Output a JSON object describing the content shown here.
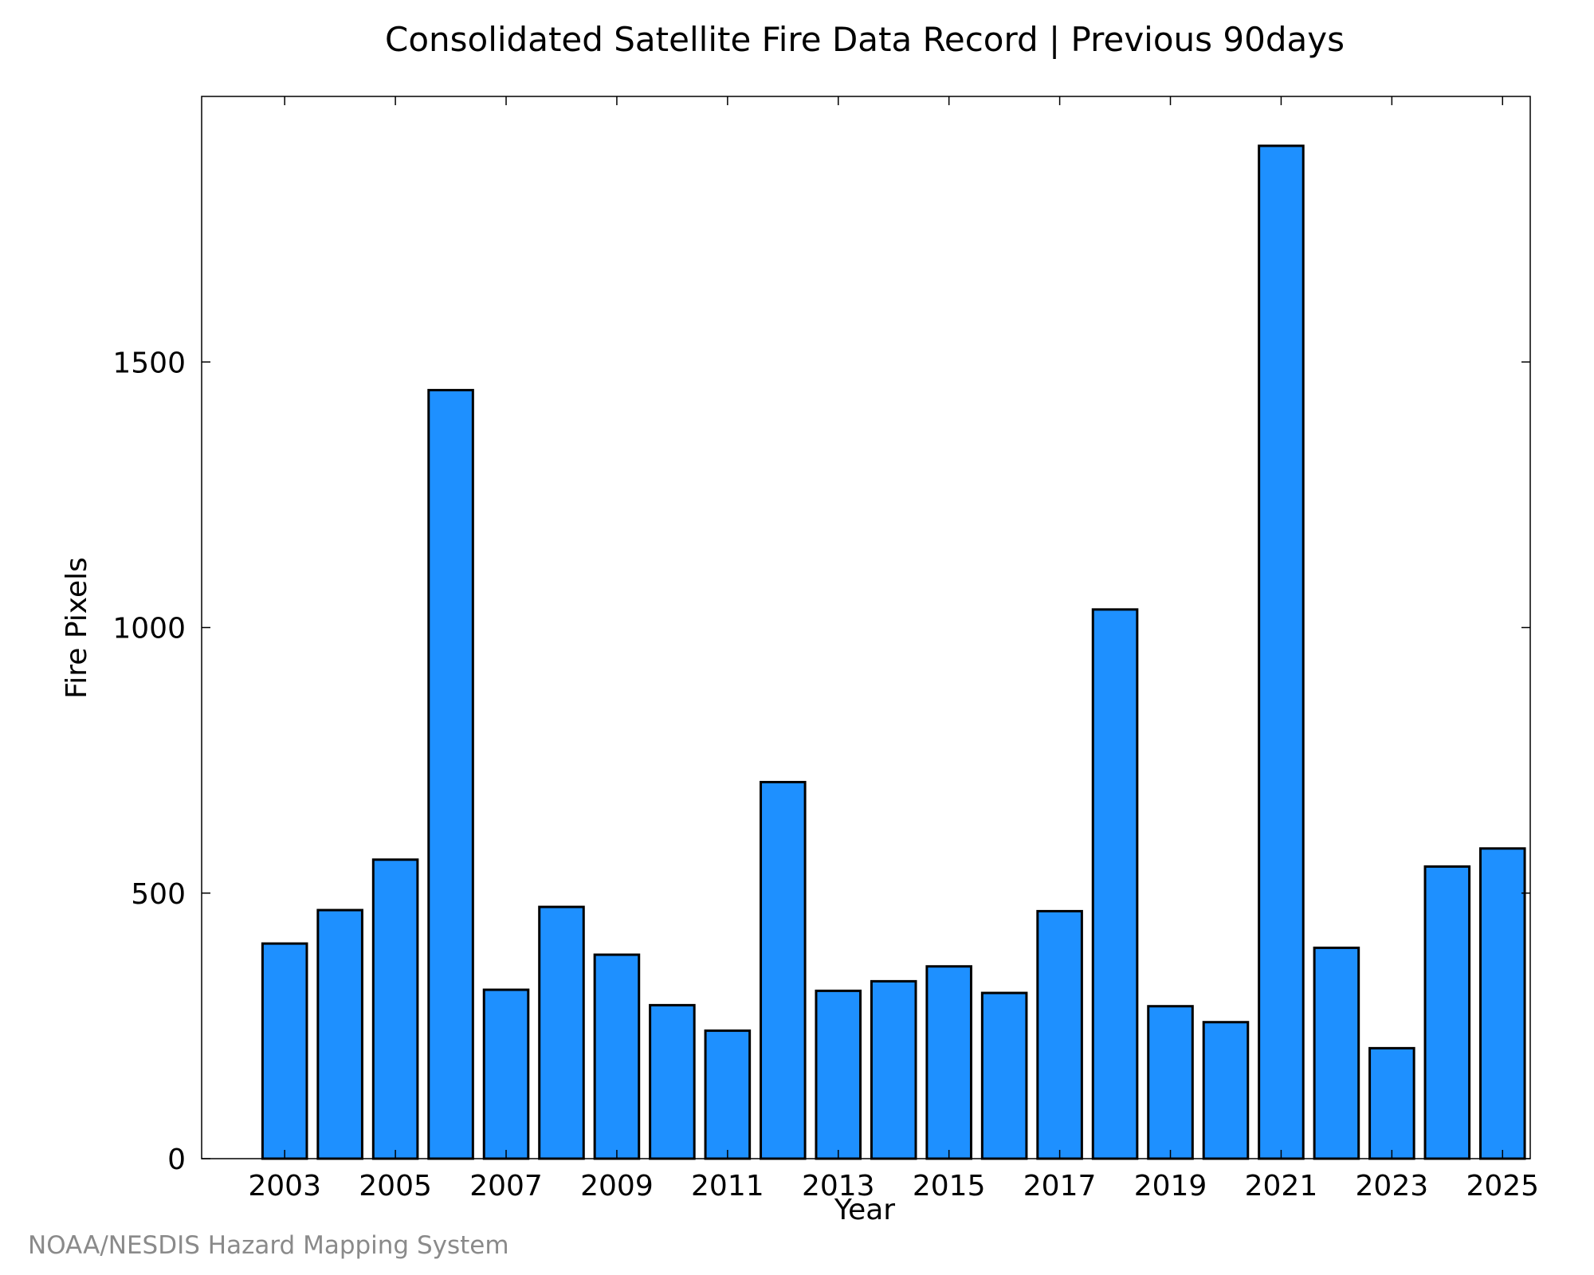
{
  "chart_data": {
    "type": "bar",
    "title": "Consolidated Satellite Fire Data Record | Previous 90days",
    "xlabel": "Year",
    "ylabel": "Fire Pixels",
    "credit": "NOAA/NESDIS Hazard Mapping System",
    "categories": [
      2003,
      2004,
      2005,
      2006,
      2007,
      2008,
      2009,
      2010,
      2011,
      2012,
      2013,
      2014,
      2015,
      2016,
      2017,
      2018,
      2019,
      2020,
      2021,
      2022,
      2023,
      2024,
      2025
    ],
    "values": [
      405,
      468,
      563,
      1447,
      318,
      474,
      384,
      289,
      241,
      709,
      316,
      334,
      362,
      312,
      466,
      1034,
      287,
      257,
      1907,
      397,
      208,
      550,
      584
    ],
    "x_tick_labels": [
      "2003",
      "2005",
      "2007",
      "2009",
      "2011",
      "2013",
      "2015",
      "2017",
      "2019",
      "2021",
      "2023",
      "2025"
    ],
    "y_ticks": [
      0,
      500,
      1000,
      1500
    ],
    "y_tick_labels": [
      "0",
      "500",
      "1000",
      "1500"
    ],
    "ylim": [
      0,
      2000
    ],
    "xlim": [
      2001.5,
      2025.5
    ],
    "bar_color": "#1e90ff",
    "bar_edge_color": "#000000",
    "grid": false,
    "legend": "none"
  }
}
